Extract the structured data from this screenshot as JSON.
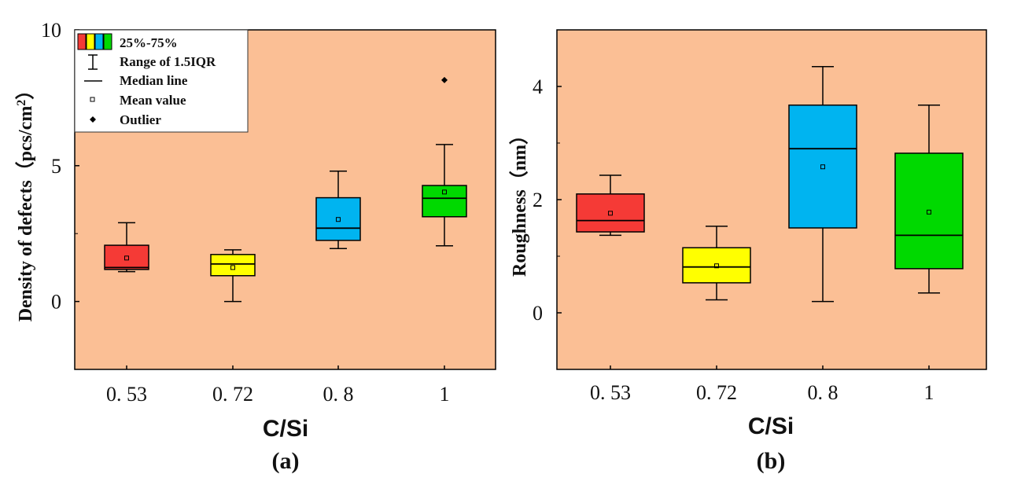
{
  "chart_data": [
    {
      "type": "box",
      "title": "",
      "caption": "(a)",
      "xlabel": "C/Si",
      "ylabel_main": "Density of defects（pcs/cm",
      "ylabel_sup": "2",
      "ylabel_close": "）",
      "ylim": [
        -2.5,
        10
      ],
      "yticks": [
        0,
        5,
        10
      ],
      "categories": [
        "0. 53",
        "0. 72",
        "0. 8",
        "1"
      ],
      "boxes": [
        {
          "category": "0. 53",
          "whisker_low": 1.1,
          "q1": 1.18,
          "median": 1.25,
          "q3": 2.07,
          "whisker_high": 2.9,
          "mean": 1.6,
          "color": "#f53a36"
        },
        {
          "category": "0. 72",
          "whisker_low": 0.0,
          "q1": 0.95,
          "median": 1.38,
          "q3": 1.73,
          "whisker_high": 1.9,
          "mean": 1.25,
          "color": "#ffff00"
        },
        {
          "category": "0. 8",
          "whisker_low": 1.95,
          "q1": 2.25,
          "median": 2.7,
          "q3": 3.82,
          "whisker_high": 4.8,
          "mean": 3.02,
          "color": "#00b4f0"
        },
        {
          "category": "1",
          "whisker_low": 2.05,
          "q1": 3.12,
          "median": 3.8,
          "q3": 4.27,
          "whisker_high": 5.78,
          "mean": 4.03,
          "color": "#00d900",
          "outliers": [
            8.15
          ]
        }
      ],
      "legend": {
        "position": "top-left",
        "items": [
          {
            "label": "25%-75%",
            "colors": [
              "#f53a36",
              "#ffff00",
              "#00b4f0",
              "#00d900"
            ]
          },
          {
            "label": "Range of 1.5IQR"
          },
          {
            "label": "Median line"
          },
          {
            "label": "Mean value"
          },
          {
            "label": "Outlier"
          }
        ]
      }
    },
    {
      "type": "box",
      "title": "",
      "caption": "(b)",
      "xlabel": "C/Si",
      "ylabel": "Roughness（nm）",
      "ylim": [
        -1,
        5
      ],
      "yticks": [
        0,
        2,
        4
      ],
      "categories": [
        "0. 53",
        "0. 72",
        "0. 8",
        "1"
      ],
      "boxes": [
        {
          "category": "0. 53",
          "whisker_low": 1.37,
          "q1": 1.43,
          "median": 1.63,
          "q3": 2.1,
          "whisker_high": 2.43,
          "mean": 1.76,
          "color": "#f53a36"
        },
        {
          "category": "0. 72",
          "whisker_low": 0.23,
          "q1": 0.53,
          "median": 0.81,
          "q3": 1.15,
          "whisker_high": 1.53,
          "mean": 0.83,
          "color": "#ffff00"
        },
        {
          "category": "0. 8",
          "whisker_low": 0.2,
          "q1": 1.5,
          "median": 2.9,
          "q3": 3.67,
          "whisker_high": 4.35,
          "mean": 2.58,
          "color": "#00b4f0"
        },
        {
          "category": "1",
          "whisker_low": 0.35,
          "q1": 0.78,
          "median": 1.37,
          "q3": 2.82,
          "whisker_high": 3.67,
          "mean": 1.78,
          "color": "#00d900"
        }
      ]
    }
  ],
  "colors": {
    "plot_background": "#fbbf95",
    "axis": "#000000"
  }
}
